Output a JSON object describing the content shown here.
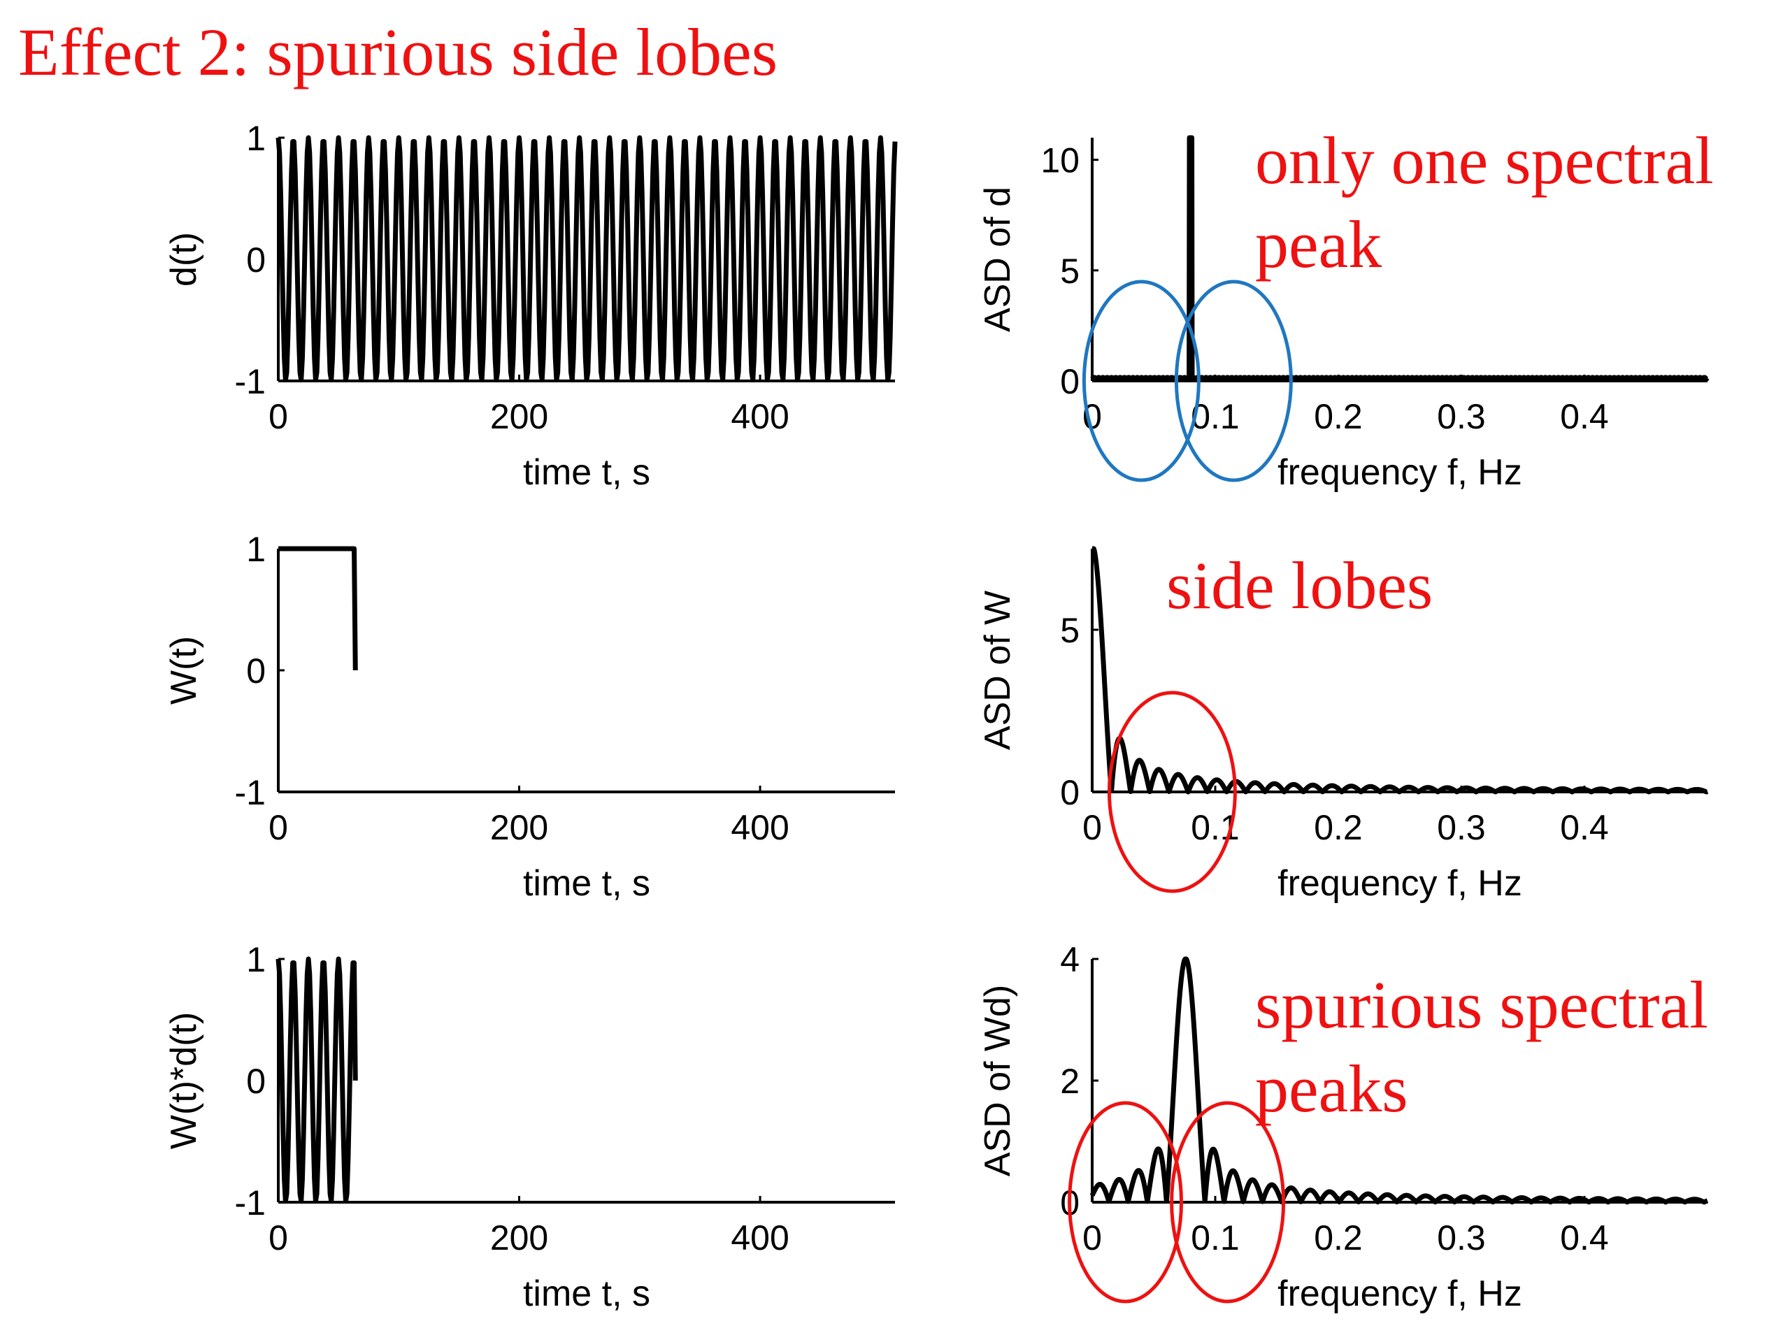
{
  "slide": {
    "title": "Effect 2: spurious side lobes",
    "annotation_color": "#ee1111",
    "highlight_color": "#1f77c0",
    "line_color": "#000000"
  },
  "chart_data": [
    {
      "id": "d-time",
      "type": "line",
      "ylabel": "d(t)",
      "xlabel": "time t, s",
      "xlim": [
        0,
        512
      ],
      "ylim": [
        -1,
        1
      ],
      "xticks": [
        0,
        200,
        400
      ],
      "yticks": [
        -1,
        0,
        1
      ],
      "series": [
        {
          "signal": "cosine",
          "frequency_hz": 0.08,
          "window_end_s": 512,
          "sample_interval_s": 1
        }
      ]
    },
    {
      "id": "d-spectrum",
      "type": "line",
      "ylabel": "ASD of d",
      "xlabel": "frequency f, Hz",
      "xlim": [
        0,
        0.5
      ],
      "ylim": [
        0,
        11
      ],
      "xticks": [
        0,
        0.1,
        0.2,
        0.3,
        0.4
      ],
      "yticks": [
        0,
        5,
        10
      ],
      "series": [
        {
          "shape": "single spectral peak",
          "peak_frequency_hz": 0.08,
          "peak_value": 11
        }
      ],
      "annotations": [
        {
          "text": "only one spectral",
          "style": "annotation"
        },
        {
          "text": "peak",
          "style": "annotation"
        }
      ],
      "highlights": [
        {
          "style": "highlight",
          "center_frequency_hz": 0.04
        },
        {
          "style": "highlight",
          "center_frequency_hz": 0.115
        }
      ]
    },
    {
      "id": "w-time",
      "type": "line",
      "ylabel": "W(t)",
      "xlabel": "time t, s",
      "xlim": [
        0,
        512
      ],
      "ylim": [
        -1,
        1
      ],
      "xticks": [
        0,
        200,
        400
      ],
      "yticks": [
        -1,
        0,
        1
      ],
      "series": [
        {
          "signal": "boxcar",
          "window_end_s": 64,
          "high_value": 1,
          "low_value": 0
        }
      ]
    },
    {
      "id": "w-spectrum",
      "type": "line",
      "ylabel": "ASD of W",
      "xlabel": "frequency f, Hz",
      "xlim": [
        0,
        0.5
      ],
      "ylim": [
        0,
        7.5
      ],
      "xticks": [
        0,
        0.1,
        0.2,
        0.3,
        0.4
      ],
      "yticks": [
        0,
        5
      ],
      "series": [
        {
          "shape": "sinc",
          "peak_frequency_hz": 0,
          "peak_value": 7.6,
          "first_zero_hz": 0.0156
        }
      ],
      "annotations": [
        {
          "text": "side lobes",
          "style": "annotation"
        }
      ],
      "highlights": [
        {
          "style": "annotation",
          "center_frequency_hz": 0.065
        }
      ]
    },
    {
      "id": "wd-time",
      "type": "line",
      "ylabel": "W(t)*d(t)",
      "xlabel": "time t, s",
      "xlim": [
        0,
        512
      ],
      "ylim": [
        -1,
        1
      ],
      "xticks": [
        0,
        200,
        400
      ],
      "yticks": [
        -1,
        0,
        1
      ],
      "series": [
        {
          "signal": "windowed cosine",
          "frequency_hz": 0.08,
          "window_end_s": 64
        }
      ]
    },
    {
      "id": "wd-spectrum",
      "type": "line",
      "ylabel": "ASD of Wd)",
      "xlabel": "frequency f, Hz",
      "xlim": [
        0,
        0.5
      ],
      "ylim": [
        0,
        4
      ],
      "xticks": [
        0,
        0.1,
        0.2,
        0.3,
        0.4
      ],
      "yticks": [
        0,
        2,
        4
      ],
      "series": [
        {
          "shape": "sinc",
          "peak_frequency_hz": 0.076,
          "peak_value": 4.0,
          "first_zero_hz": 0.0156
        }
      ],
      "annotations": [
        {
          "text": "spurious spectral",
          "style": "annotation"
        },
        {
          "text": "peaks",
          "style": "annotation"
        }
      ],
      "highlights": [
        {
          "style": "annotation",
          "center_frequency_hz": 0.027
        },
        {
          "style": "annotation",
          "center_frequency_hz": 0.11
        }
      ]
    }
  ]
}
